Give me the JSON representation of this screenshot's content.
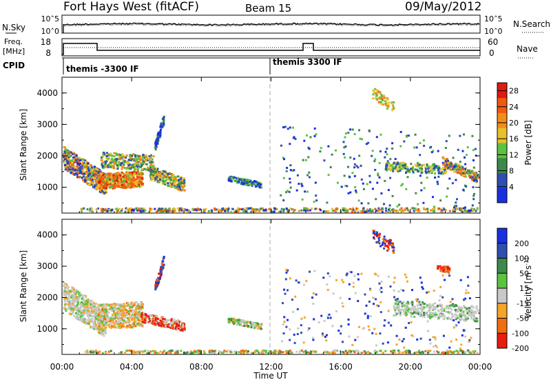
{
  "header": {
    "station": "Fort Hays West (fitACF)",
    "beam": "Beam 15",
    "date": "09/May/2012"
  },
  "summary_panels": {
    "noise": {
      "left_label": "N.Sky",
      "right_label": "N.Search",
      "left_ticks": [
        "10^5",
        "10^0"
      ],
      "right_ticks": [
        "10^5",
        "10^0"
      ]
    },
    "freq": {
      "left_label_1": "Freq.",
      "left_label_2": "[MHz]",
      "right_label": "Nave",
      "left_ticks": [
        "18",
        "8"
      ],
      "right_ticks": [
        "60",
        "0"
      ]
    },
    "cpid": {
      "label": "CPID",
      "programs": [
        {
          "name": "themis -3300 IF",
          "start_hour": 0
        },
        {
          "name": "themis 3300 IF",
          "start_hour": 12
        }
      ]
    }
  },
  "chart_data": [
    {
      "type": "heatmap",
      "title": "",
      "xlabel": "",
      "ylabel": "Slant Range [km]",
      "xlim_hours": [
        0,
        24
      ],
      "ylim": [
        180,
        4500
      ],
      "y_ticks": [
        1000,
        2000,
        3000,
        4000
      ],
      "colorbar": {
        "label": "Power [dB]",
        "ticks": [
          4,
          8,
          12,
          16,
          20,
          24,
          28
        ],
        "range": [
          0,
          30
        ],
        "colors": [
          "#1a2fe0",
          "#2f4fb0",
          "#3b8a4a",
          "#5cc242",
          "#e8c02c",
          "#f38d1a",
          "#ef5a10",
          "#e01a10"
        ]
      }
    },
    {
      "type": "heatmap",
      "title": "",
      "xlabel": "Time UT",
      "ylabel": "Slant Range [km]",
      "xlim_hours": [
        0,
        24
      ],
      "ylim": [
        180,
        4500
      ],
      "y_ticks": [
        1000,
        2000,
        3000,
        4000
      ],
      "x_ticks": [
        "00:00",
        "04:00",
        "08:00",
        "12:00",
        "16:00",
        "20:00",
        "00:00"
      ],
      "colorbar": {
        "label": "Velocity [m s^-1]",
        "ticks": [
          "200",
          "100",
          "50",
          "15",
          "-15",
          "-50",
          "-100",
          "-200"
        ],
        "colors": [
          "#1a2fe0",
          "#2f4fb0",
          "#3b8a4a",
          "#5cc242",
          "#c8c8c8",
          "#f4a52a",
          "#ef6e10",
          "#e81c10"
        ]
      }
    }
  ]
}
